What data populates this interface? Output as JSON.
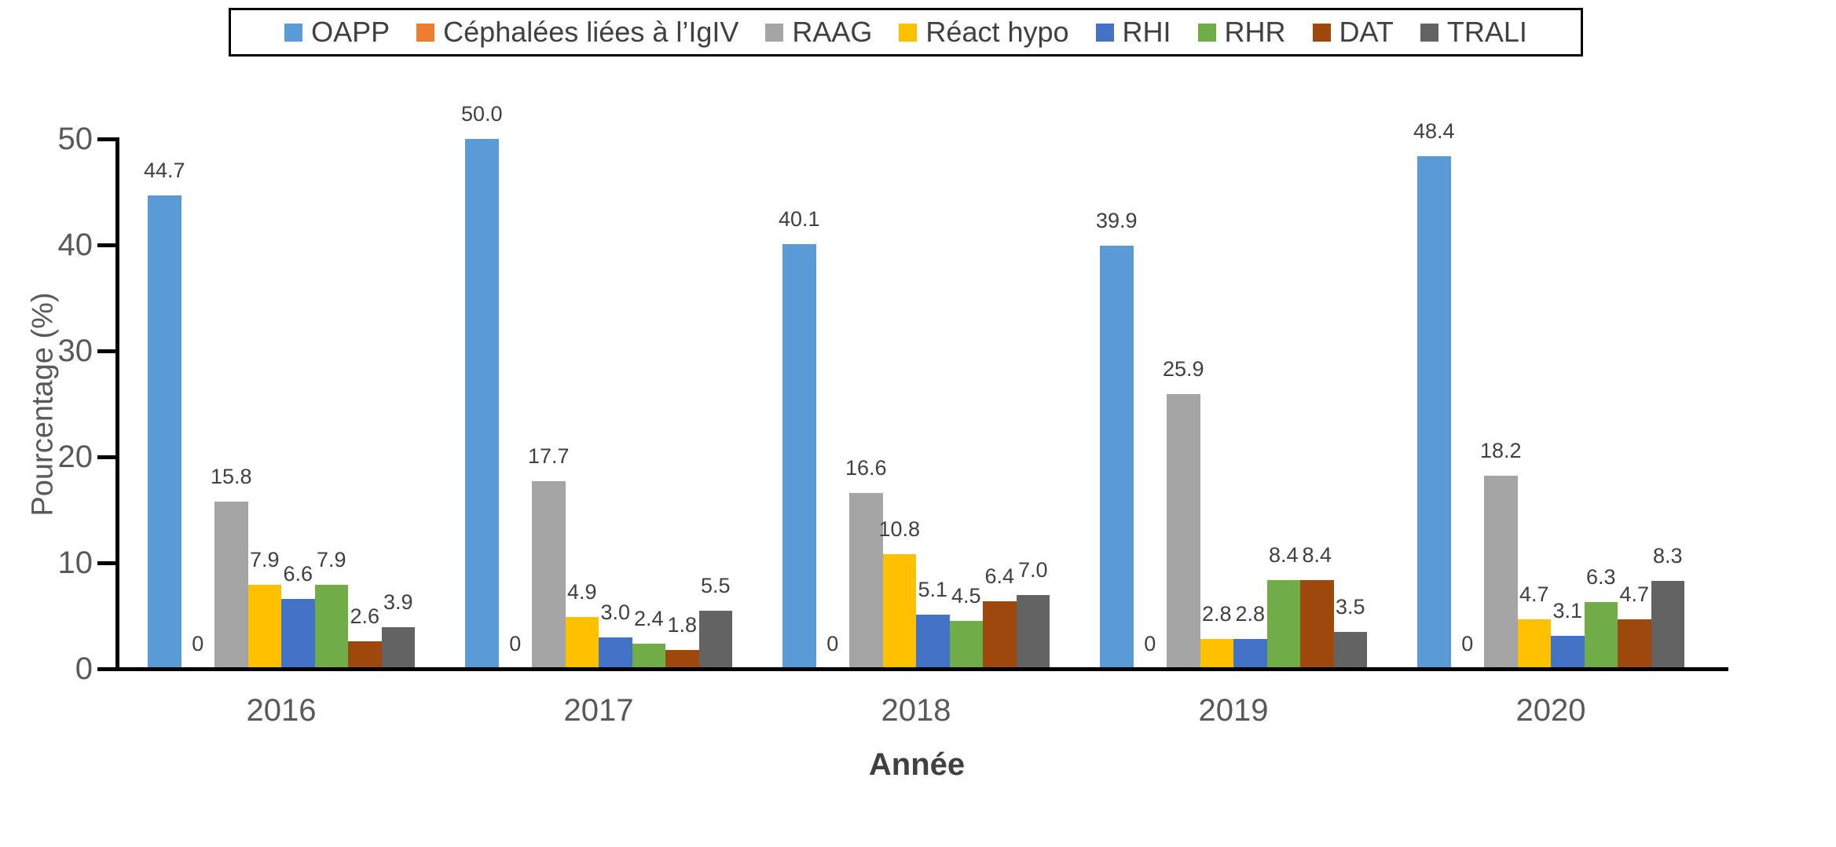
{
  "chart_data": {
    "type": "bar",
    "title": "",
    "xlabel": "Année",
    "ylabel": "Pourcentage (%)",
    "ylim": [
      0,
      50
    ],
    "yticks": [
      "0",
      "10",
      "20",
      "30",
      "40",
      "50"
    ],
    "grid": false,
    "legend_position": "top",
    "categories": [
      "2016",
      "2017",
      "2018",
      "2019",
      "2020"
    ],
    "series": [
      {
        "name": "OAPP",
        "color": "#5B9BD5",
        "values": [
          44.7,
          50.0,
          40.1,
          39.9,
          48.4
        ],
        "labels": [
          "44.7",
          "50.0",
          "40.1",
          "39.9",
          "48.4"
        ]
      },
      {
        "name": "Céphalées liées à l’IgIV",
        "color": "#ED7D31",
        "values": [
          0,
          0,
          0,
          0,
          0
        ],
        "labels": [
          "0",
          "0",
          "0",
          "0",
          "0"
        ]
      },
      {
        "name": "RAAG",
        "color": "#A5A5A5",
        "values": [
          15.8,
          17.7,
          16.6,
          25.9,
          18.2
        ],
        "labels": [
          "15.8",
          "17.7",
          "16.6",
          "25.9",
          "18.2"
        ]
      },
      {
        "name": "Réact hypo",
        "color": "#FFC000",
        "values": [
          7.9,
          4.9,
          10.8,
          2.8,
          4.7
        ],
        "labels": [
          "7.9",
          "4.9",
          "10.8",
          "2.8",
          "4.7"
        ]
      },
      {
        "name": "RHI",
        "color": "#4472C4",
        "values": [
          6.6,
          3.0,
          5.1,
          2.8,
          3.1
        ],
        "labels": [
          "6.6",
          "3.0",
          "5.1",
          "2.8",
          "3.1"
        ]
      },
      {
        "name": "RHR",
        "color": "#70AD47",
        "values": [
          7.9,
          2.4,
          4.5,
          8.4,
          6.3
        ],
        "labels": [
          "7.9",
          "2.4",
          "4.5",
          "8.4",
          "6.3"
        ]
      },
      {
        "name": "DAT",
        "color": "#9E480E",
        "values": [
          2.6,
          1.8,
          6.4,
          8.4,
          4.7
        ],
        "labels": [
          "2.6",
          "1.8",
          "6.4",
          "8.4",
          "4.7"
        ]
      },
      {
        "name": "TRALI",
        "color": "#636363",
        "values": [
          3.9,
          5.5,
          7.0,
          3.5,
          8.3
        ],
        "labels": [
          "3.9",
          "5.5",
          "7.0",
          "3.5",
          "8.3"
        ]
      }
    ]
  },
  "axis_colors": {
    "line": "#000000",
    "tick_text": "#595959",
    "label_text": "#404040"
  }
}
